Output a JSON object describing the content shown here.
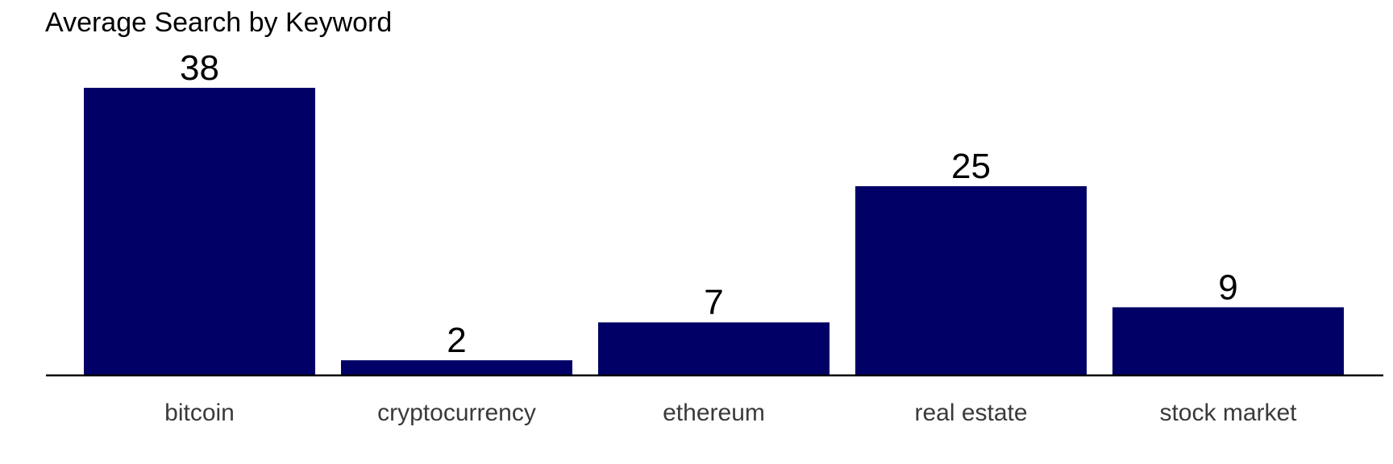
{
  "chart_data": {
    "type": "bar",
    "title": "Average Search by Keyword",
    "xlabel": "",
    "ylabel": "",
    "categories": [
      "bitcoin",
      "cryptocurrency",
      "ethereum",
      "real estate",
      "stock market"
    ],
    "values": [
      38,
      2,
      7,
      25,
      9
    ],
    "ylim": [
      0,
      38
    ],
    "grid": false,
    "legend": "none",
    "bar_color": "#000066",
    "axis_color": "#000000",
    "tick_label_color": "#3a3a3a"
  }
}
